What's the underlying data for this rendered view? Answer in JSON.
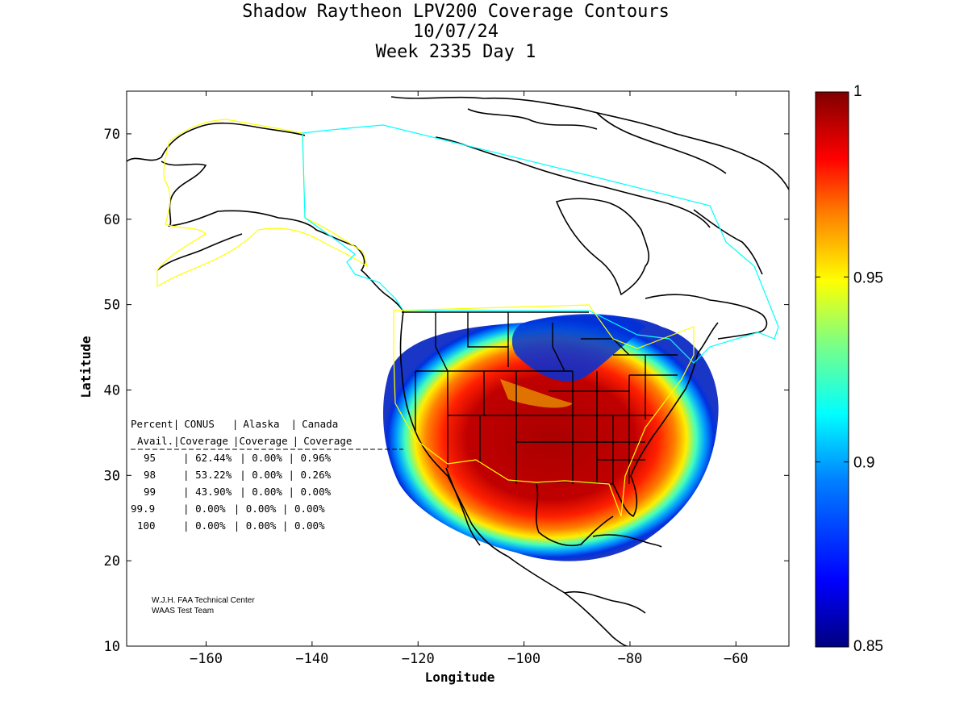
{
  "title": {
    "line1": "Shadow Raytheon LPV200 Coverage Contours",
    "line2": "10/07/24",
    "line3": "Week 2335 Day 1"
  },
  "axes": {
    "xlabel": "Longitude",
    "ylabel": "Latitude",
    "xlim": [
      -175,
      -50
    ],
    "ylim": [
      10,
      75
    ],
    "xticks": [
      -160,
      -140,
      -120,
      -100,
      -80,
      -60
    ],
    "yticks": [
      10,
      20,
      30,
      40,
      50,
      60,
      70
    ]
  },
  "colorbar": {
    "min": 0.85,
    "max": 1,
    "ticks": [
      "1",
      "0.95",
      "0.9",
      "0.85"
    ],
    "colormap": "jet"
  },
  "table": {
    "header1": [
      "Percent",
      "CONUS",
      "Alaska",
      "Canada"
    ],
    "header2": [
      "Avail.",
      "Coverage",
      "Coverage",
      "Coverage"
    ],
    "rows": [
      [
        "95",
        "62.44%",
        "0.00%",
        "0.96%"
      ],
      [
        "98",
        "53.22%",
        "0.00%",
        "0.26%"
      ],
      [
        "99",
        "43.90%",
        "0.00%",
        "0.00%"
      ],
      [
        "99.9",
        "0.00%",
        "0.00%",
        "0.00%"
      ],
      [
        "100",
        "0.00%",
        "0.00%",
        "0.00%"
      ]
    ]
  },
  "credit": {
    "line1": "W.J.H. FAA Technical Center",
    "line2": "WAAS Test Team"
  },
  "colors": {
    "alaska_boundary": "#ffff00",
    "canada_boundary": "#00ffff",
    "conus_boundary": "#ffff00",
    "coastline": "#000000"
  }
}
